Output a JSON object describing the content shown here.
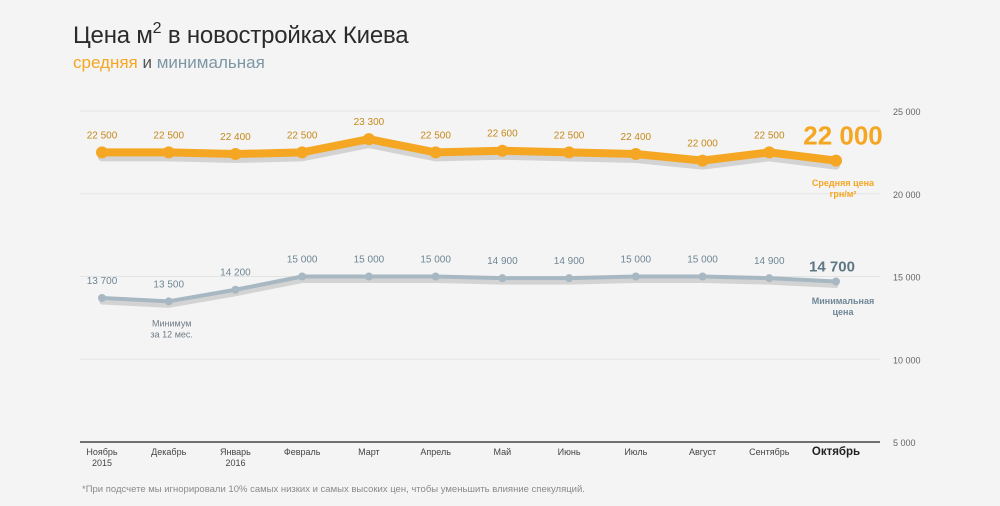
{
  "title": {
    "main": "Цена м",
    "sup": "2",
    "rest": " в новостройках Киева"
  },
  "subtitle": {
    "avg": "средняя",
    "and": "и",
    "min": "минимальная"
  },
  "footnote": "*При подсчете мы игнорировали 10% самых низких и самых высоких цен, чтобы уменьшить влияние спекуляций.",
  "colors": {
    "avg": "#f5a623",
    "min": "#a7b8c3",
    "min_text": "#6f8796",
    "shadow": "#d3d3d3",
    "grid": "#e3e3e3",
    "axis": "#444444"
  },
  "chart_data": {
    "type": "line",
    "categories": [
      [
        "Ноябрь",
        "2015"
      ],
      [
        "Декабрь"
      ],
      [
        "Январь",
        "2016"
      ],
      [
        "Февраль"
      ],
      [
        "Март"
      ],
      [
        "Апрель"
      ],
      [
        "Май"
      ],
      [
        "Июнь"
      ],
      [
        "Июль"
      ],
      [
        "Август"
      ],
      [
        "Сентябрь"
      ],
      [
        "Октябрь"
      ]
    ],
    "highlight_index": 11,
    "ylim": [
      5000,
      25000
    ],
    "yticks": [
      5000,
      10000,
      15000,
      20000,
      25000
    ],
    "ytick_labels": [
      "5 000",
      "10 000",
      "15 000",
      "20 000",
      "25 000"
    ],
    "grid": true,
    "series": [
      {
        "key": "avg",
        "values": [
          22500,
          22500,
          22400,
          22500,
          23300,
          22500,
          22600,
          22500,
          22400,
          22000,
          22500,
          22000
        ],
        "labels": [
          "22 500",
          "22 500",
          "22 400",
          "22 500",
          "23 300",
          "22 500",
          "22 600",
          "22 500",
          "22 400",
          "22 000",
          "22 500",
          "22 000"
        ],
        "end_label": [
          "Средняя цена",
          "грн/м²"
        ]
      },
      {
        "key": "min",
        "values": [
          13700,
          13500,
          14200,
          15000,
          15000,
          15000,
          14900,
          14900,
          15000,
          15000,
          14900,
          14700
        ],
        "labels": [
          "13 700",
          "13 500",
          "14 200",
          "15 000",
          "15 000",
          "15 000",
          "14 900",
          "14 900",
          "15 000",
          "15 000",
          "14 900",
          "14 700"
        ],
        "end_label": [
          "Минимальная",
          "цена"
        ]
      }
    ],
    "annotations": [
      {
        "series": "min",
        "index": 1,
        "lines": [
          "Минимум",
          "за 12 мес."
        ]
      }
    ]
  }
}
